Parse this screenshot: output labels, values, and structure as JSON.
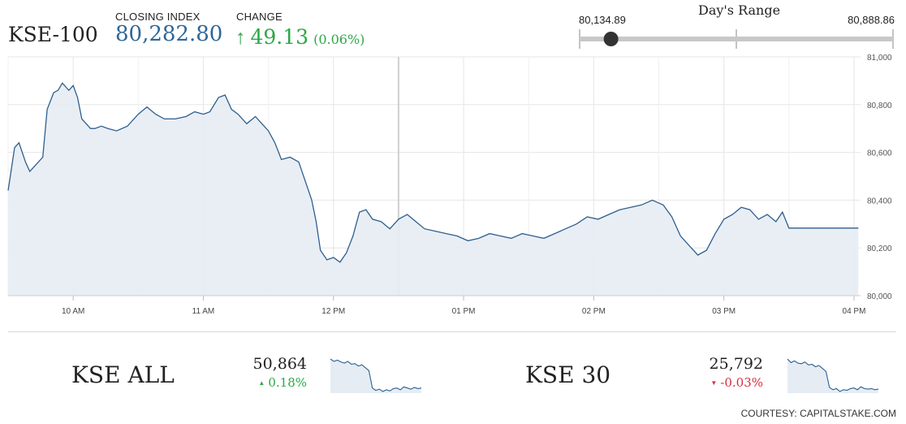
{
  "header": {
    "index_name": "KSE-100",
    "closing_label": "CLOSING INDEX",
    "closing_value": "80,282.80",
    "change_label": "CHANGE",
    "change_arrow": "↑",
    "change_value": "49.13",
    "change_percent": "(0.06%)"
  },
  "days_range": {
    "title": "Day's Range",
    "low": "80,134.89",
    "high": "80,888.86",
    "marker_fraction": 0.1
  },
  "chart_data": {
    "type": "area",
    "title": "",
    "xlabel": "",
    "ylabel": "",
    "x_ticks": [
      "10 AM",
      "11 AM",
      "12 PM",
      "01 PM",
      "02 PM",
      "03 PM",
      "04 PM"
    ],
    "y_ticks": [
      "81,000",
      "80,800",
      "80,600",
      "80,400",
      "80,200",
      "80,000"
    ],
    "ylim": [
      80000,
      81000
    ],
    "grid": true,
    "series": [
      {
        "values": [
          [
            "09:30",
            80440
          ],
          [
            "09:33",
            80620
          ],
          [
            "09:35",
            80640
          ],
          [
            "09:38",
            80560
          ],
          [
            "09:40",
            80520
          ],
          [
            "09:43",
            80550
          ],
          [
            "09:46",
            80580
          ],
          [
            "09:48",
            80780
          ],
          [
            "09:51",
            80850
          ],
          [
            "09:53",
            80860
          ],
          [
            "09:55",
            80890
          ],
          [
            "09:58",
            80860
          ],
          [
            "10:00",
            80880
          ],
          [
            "10:02",
            80830
          ],
          [
            "10:04",
            80740
          ],
          [
            "10:06",
            80720
          ],
          [
            "10:08",
            80700
          ],
          [
            "10:10",
            80700
          ],
          [
            "10:13",
            80710
          ],
          [
            "10:16",
            80700
          ],
          [
            "10:20",
            80690
          ],
          [
            "10:25",
            80710
          ],
          [
            "10:30",
            80760
          ],
          [
            "10:34",
            80790
          ],
          [
            "10:38",
            80760
          ],
          [
            "10:42",
            80740
          ],
          [
            "10:47",
            80740
          ],
          [
            "10:52",
            80750
          ],
          [
            "10:56",
            80770
          ],
          [
            "11:00",
            80760
          ],
          [
            "11:03",
            80770
          ],
          [
            "11:07",
            80830
          ],
          [
            "11:10",
            80840
          ],
          [
            "11:13",
            80780
          ],
          [
            "11:16",
            80760
          ],
          [
            "11:20",
            80720
          ],
          [
            "11:24",
            80750
          ],
          [
            "11:27",
            80720
          ],
          [
            "11:30",
            80690
          ],
          [
            "11:33",
            80640
          ],
          [
            "11:36",
            80570
          ],
          [
            "11:40",
            80580
          ],
          [
            "11:44",
            80560
          ],
          [
            "11:47",
            80480
          ],
          [
            "11:50",
            80400
          ],
          [
            "11:52",
            80310
          ],
          [
            "11:54",
            80190
          ],
          [
            "11:57",
            80150
          ],
          [
            "12:00",
            80160
          ],
          [
            "12:03",
            80140
          ],
          [
            "12:06",
            80180
          ],
          [
            "12:09",
            80250
          ],
          [
            "12:12",
            80350
          ],
          [
            "12:15",
            80360
          ],
          [
            "12:18",
            80320
          ],
          [
            "12:22",
            80310
          ],
          [
            "12:26",
            80280
          ],
          [
            "12:30",
            80320
          ],
          [
            "12:34",
            80340
          ],
          [
            "12:38",
            80310
          ],
          [
            "12:42",
            80280
          ],
          [
            "12:47",
            80270
          ],
          [
            "12:52",
            80260
          ],
          [
            "12:57",
            80250
          ],
          [
            "01:02",
            80230
          ],
          [
            "01:07",
            80240
          ],
          [
            "01:12",
            80260
          ],
          [
            "01:17",
            80250
          ],
          [
            "01:22",
            80240
          ],
          [
            "01:27",
            80260
          ],
          [
            "01:32",
            80250
          ],
          [
            "01:37",
            80240
          ],
          [
            "01:42",
            80260
          ],
          [
            "01:47",
            80280
          ],
          [
            "01:52",
            80300
          ],
          [
            "01:57",
            80330
          ],
          [
            "02:02",
            80320
          ],
          [
            "02:07",
            80340
          ],
          [
            "02:12",
            80360
          ],
          [
            "02:17",
            80370
          ],
          [
            "02:22",
            80380
          ],
          [
            "02:27",
            80400
          ],
          [
            "02:32",
            80380
          ],
          [
            "02:36",
            80330
          ],
          [
            "02:40",
            80250
          ],
          [
            "02:44",
            80210
          ],
          [
            "02:48",
            80170
          ],
          [
            "02:52",
            80190
          ],
          [
            "02:56",
            80260
          ],
          [
            "03:00",
            80320
          ],
          [
            "03:04",
            80340
          ],
          [
            "03:08",
            80370
          ],
          [
            "03:12",
            80360
          ],
          [
            "03:16",
            80320
          ],
          [
            "03:20",
            80340
          ],
          [
            "03:24",
            80310
          ],
          [
            "03:27",
            80350
          ],
          [
            "03:30",
            80283
          ],
          [
            "04:02",
            80283
          ]
        ]
      }
    ]
  },
  "bottom": {
    "kse_all": {
      "name": "KSE ALL",
      "value": "50,864",
      "arrow": "▲",
      "change": "0.18%",
      "sparkline": [
        100,
        96,
        98,
        95,
        93,
        96,
        91,
        92,
        88,
        90,
        85,
        80,
        50,
        46,
        48,
        44,
        47,
        45,
        49,
        50,
        47,
        52,
        50,
        48,
        51,
        49,
        50
      ]
    },
    "kse_30": {
      "name": "KSE 30",
      "value": "25,792",
      "arrow": "▼",
      "change": "-0.03%",
      "sparkline": [
        100,
        94,
        97,
        93,
        92,
        95,
        90,
        91,
        87,
        89,
        84,
        79,
        52,
        48,
        50,
        45,
        48,
        47,
        50,
        51,
        48,
        53,
        50,
        49,
        50,
        48,
        49
      ]
    }
  },
  "courtesy": "COURTESY: CAPITALSTAKE.COM",
  "colors": {
    "line": "#2f5f8e",
    "fill": "#e5ecf3",
    "grid": "#e6e6e6",
    "up": "#2ca845",
    "down": "#d62f3f",
    "closing": "#2f6797"
  }
}
